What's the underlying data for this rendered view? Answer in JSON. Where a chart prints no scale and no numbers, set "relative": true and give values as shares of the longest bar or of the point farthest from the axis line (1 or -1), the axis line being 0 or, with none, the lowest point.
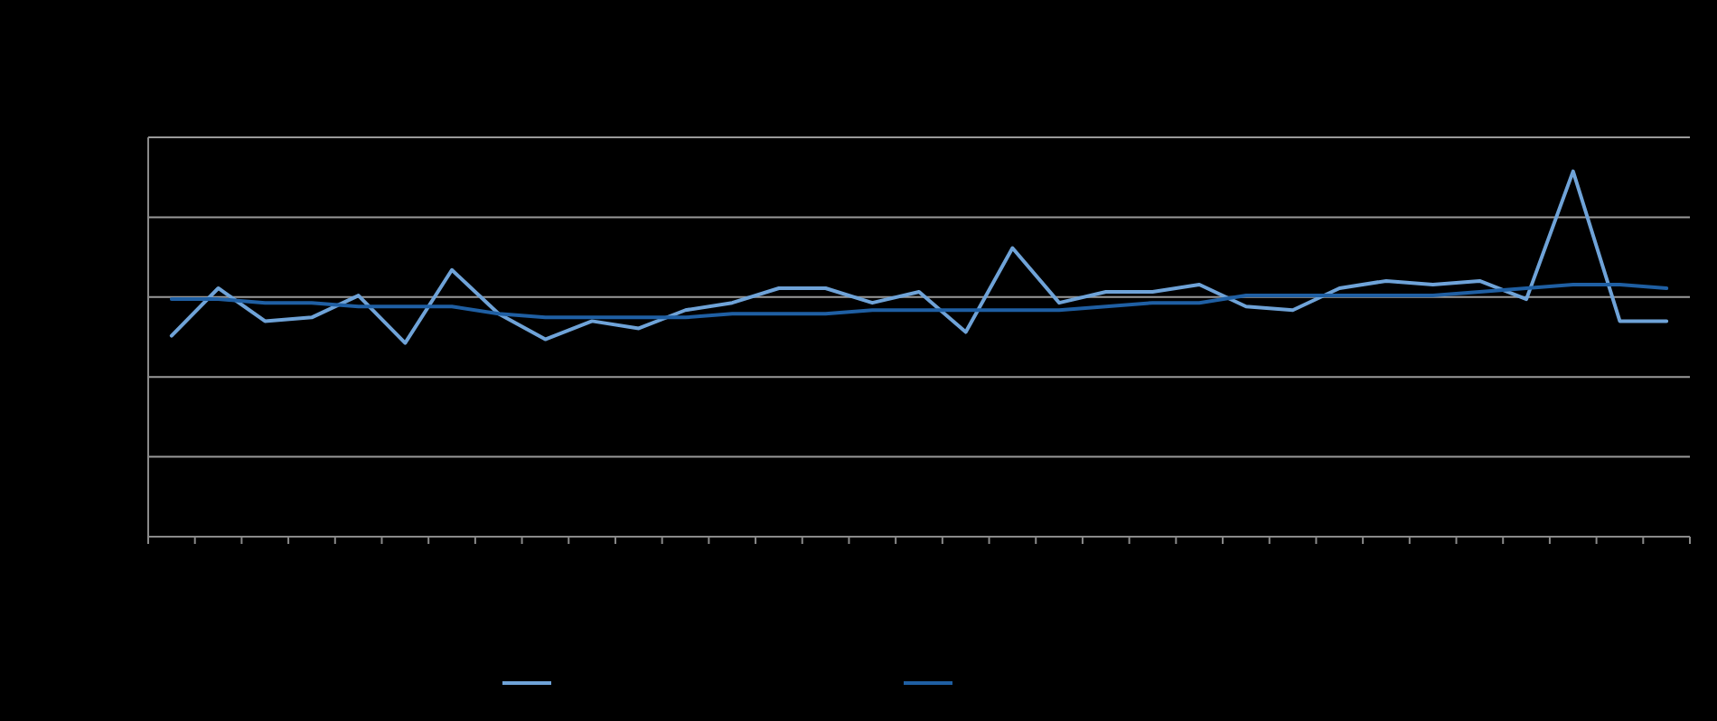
{
  "chart_data": {
    "type": "line",
    "relative": true,
    "grid": "y",
    "categories": [
      null,
      null,
      null,
      null,
      null,
      null,
      null,
      null,
      null,
      null,
      null,
      null,
      null,
      null,
      null,
      null,
      null,
      null,
      null,
      null,
      null,
      null,
      null,
      null,
      null,
      null,
      null,
      null,
      null,
      null,
      null,
      null,
      null
    ],
    "series": [
      {
        "color": "#6fa3d8",
        "values": [
          0.55,
          0.68,
          0.59,
          0.6,
          0.66,
          0.53,
          0.73,
          0.61,
          0.54,
          0.59,
          0.57,
          0.62,
          0.64,
          0.68,
          0.68,
          0.64,
          0.67,
          0.56,
          0.79,
          0.64,
          0.67,
          0.67,
          0.69,
          0.63,
          0.62,
          0.68,
          0.7,
          0.69,
          0.7,
          0.65,
          1,
          0.59,
          0.59
        ]
      },
      {
        "color": "#1f5fa3",
        "values": [
          0.65,
          0.65,
          0.64,
          0.64,
          0.63,
          0.63,
          0.63,
          0.61,
          0.6,
          0.6,
          0.6,
          0.6,
          0.61,
          0.61,
          0.61,
          0.62,
          0.62,
          0.62,
          0.62,
          0.62,
          0.63,
          0.64,
          0.64,
          0.66,
          0.66,
          0.66,
          0.66,
          0.66,
          0.67,
          0.68,
          0.69,
          0.69,
          0.68
        ]
      }
    ]
  }
}
